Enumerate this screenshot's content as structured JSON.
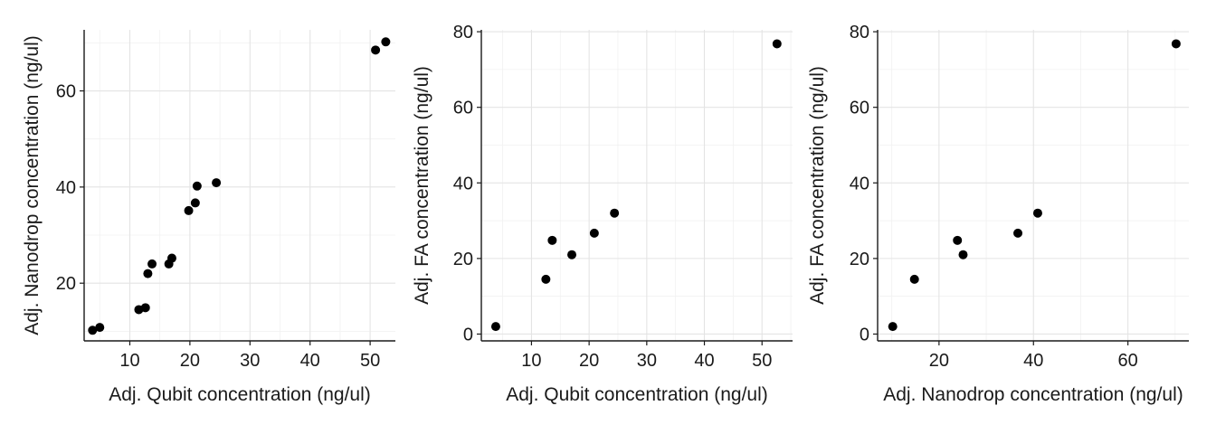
{
  "chart_data": [
    {
      "type": "scatter",
      "xlabel": "Adj. Qubit concentration (ng/ul)",
      "ylabel": "Adj. Nanodrop concentration (ng/ul)",
      "xlim": [
        2.4,
        54.2
      ],
      "ylim": [
        8.0,
        72.7
      ],
      "xticks": [
        10,
        20,
        30,
        40,
        50
      ],
      "yticks": [
        20,
        40,
        60
      ],
      "grid": true,
      "points": [
        {
          "x": 3.8,
          "y": 10.2
        },
        {
          "x": 5.0,
          "y": 10.8
        },
        {
          "x": 11.5,
          "y": 14.5
        },
        {
          "x": 12.6,
          "y": 14.9
        },
        {
          "x": 13.0,
          "y": 22.0
        },
        {
          "x": 13.7,
          "y": 24.0
        },
        {
          "x": 16.5,
          "y": 24.0
        },
        {
          "x": 17.0,
          "y": 25.2
        },
        {
          "x": 19.8,
          "y": 35.1
        },
        {
          "x": 20.9,
          "y": 36.7
        },
        {
          "x": 21.2,
          "y": 40.2
        },
        {
          "x": 24.4,
          "y": 40.9
        },
        {
          "x": 50.9,
          "y": 68.5
        },
        {
          "x": 52.6,
          "y": 70.2
        }
      ]
    },
    {
      "type": "scatter",
      "xlabel": "Adj. Qubit concentration (ng/ul)",
      "ylabel": "Adj. FA concentration (ng/ul)",
      "xlim": [
        1.3,
        55.3
      ],
      "ylim": [
        -1.8,
        80.5
      ],
      "xticks": [
        10,
        20,
        30,
        40,
        50
      ],
      "yticks": [
        0,
        20,
        40,
        60,
        80
      ],
      "grid": true,
      "points": [
        {
          "x": 3.8,
          "y": 2.0
        },
        {
          "x": 12.5,
          "y": 14.5
        },
        {
          "x": 13.6,
          "y": 24.8
        },
        {
          "x": 17.0,
          "y": 21.0
        },
        {
          "x": 20.9,
          "y": 26.7
        },
        {
          "x": 24.4,
          "y": 32.0
        },
        {
          "x": 52.6,
          "y": 76.8
        }
      ]
    },
    {
      "type": "scatter",
      "xlabel": "Adj. Nanodrop concentration (ng/ul)",
      "ylabel": "Adj. FA concentration (ng/ul)",
      "xlim": [
        7.0,
        72.9
      ],
      "ylim": [
        -1.8,
        80.5
      ],
      "xticks": [
        20,
        40,
        60
      ],
      "yticks": [
        0,
        20,
        40,
        60,
        80
      ],
      "grid": true,
      "points": [
        {
          "x": 10.2,
          "y": 2.0
        },
        {
          "x": 14.8,
          "y": 14.5
        },
        {
          "x": 23.9,
          "y": 24.8
        },
        {
          "x": 25.1,
          "y": 21.0
        },
        {
          "x": 36.7,
          "y": 26.7
        },
        {
          "x": 40.9,
          "y": 32.0
        },
        {
          "x": 70.2,
          "y": 76.8
        }
      ]
    }
  ]
}
